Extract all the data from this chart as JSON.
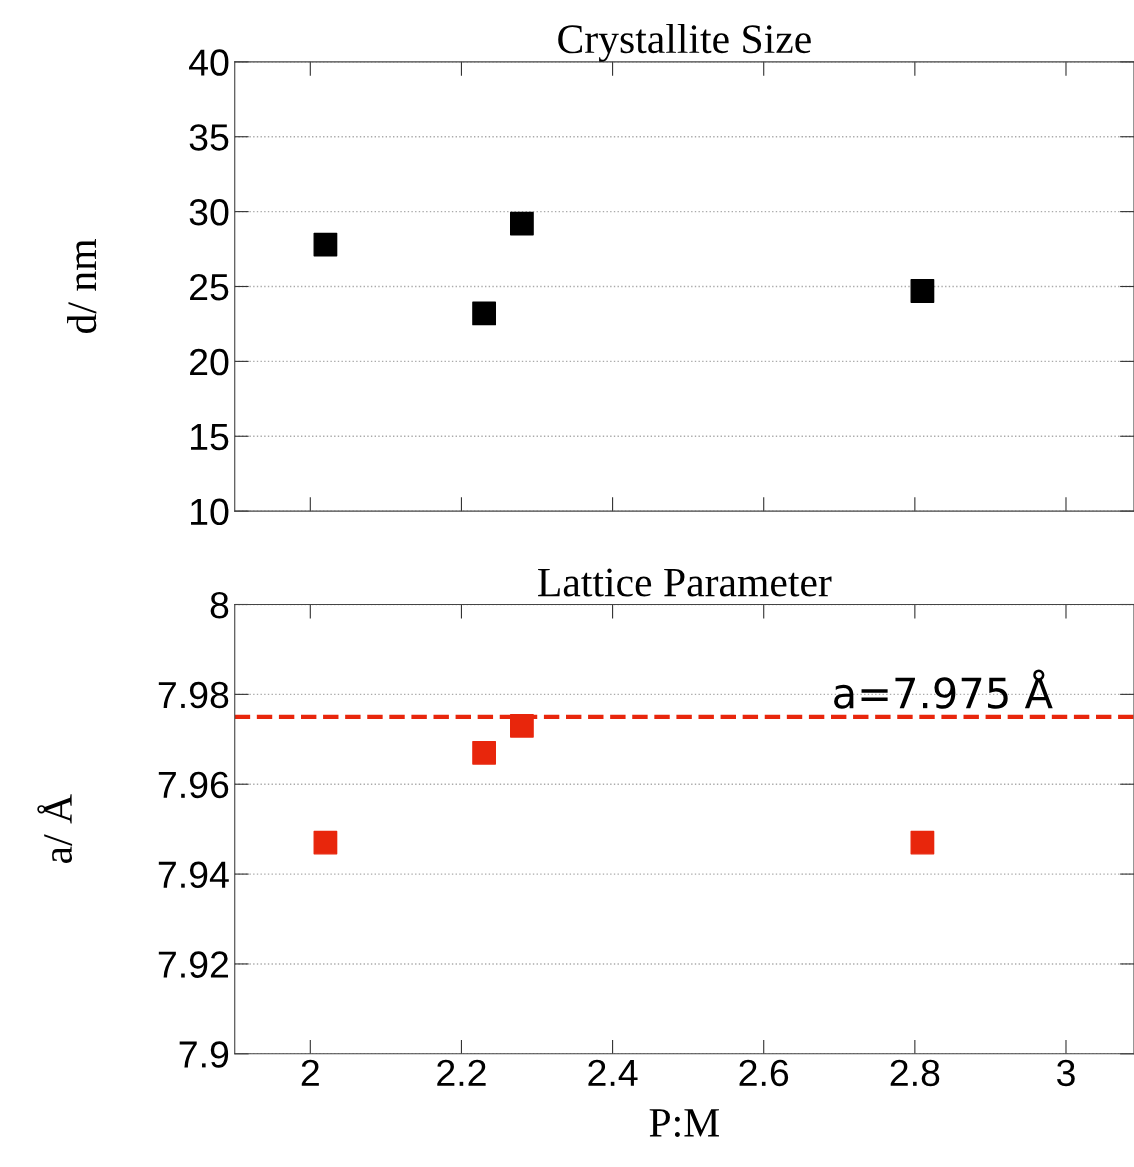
{
  "chart_data": [
    {
      "type": "scatter",
      "title": "Crystallite Size",
      "ylabel": "d/ nm",
      "x": [
        2.02,
        2.23,
        2.28,
        2.81
      ],
      "series": [
        {
          "color": "#000000",
          "values": [
            27.8,
            23.2,
            29.2,
            24.7
          ]
        }
      ],
      "marker": "square",
      "xlim": [
        1.9,
        3.09
      ],
      "xticks": [
        2,
        2.2,
        2.4,
        2.6,
        2.8,
        3
      ],
      "ylim": [
        10,
        40
      ],
      "yticks": [
        10,
        15,
        20,
        25,
        30,
        35,
        40
      ],
      "grid": "y",
      "tick_labels": "y",
      "legend": false
    },
    {
      "type": "scatter",
      "title": "Lattice Parameter",
      "ylabel": "a/ Å",
      "xlabel": "P:M",
      "x": [
        2.02,
        2.23,
        2.28,
        2.81
      ],
      "series": [
        {
          "color": "#e8260c",
          "values": [
            7.947,
            7.967,
            7.973,
            7.947
          ]
        }
      ],
      "marker": "square",
      "xlim": [
        1.9,
        3.09
      ],
      "xticks": [
        2,
        2.2,
        2.4,
        2.6,
        2.8,
        3
      ],
      "ylim": [
        7.9,
        8
      ],
      "yticks": [
        7.9,
        7.92,
        7.94,
        7.96,
        7.98,
        8
      ],
      "grid": "y",
      "legend": false,
      "ref_lines": [
        {
          "axis": "y",
          "value": 7.975,
          "label": "a=7.975 Å",
          "color": "#e8260c",
          "line_style": "dashed"
        }
      ]
    }
  ]
}
